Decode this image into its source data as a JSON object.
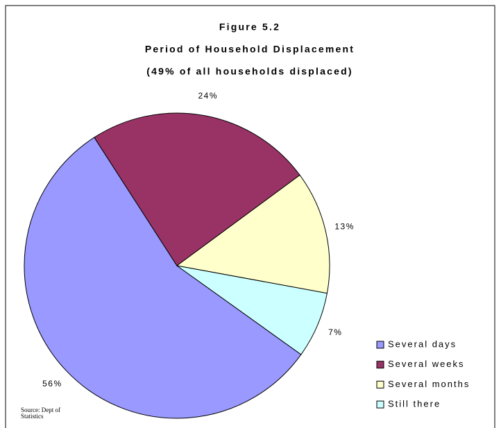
{
  "chart_data": {
    "type": "pie",
    "title": [
      "Figure 5.2",
      "Period of Household Displacement",
      "(49% of all households displaced)"
    ],
    "categories": [
      "Several days",
      "Several weeks",
      "Several months",
      "Still there"
    ],
    "values": [
      56,
      24,
      13,
      7
    ],
    "value_labels": [
      "56%",
      "24%",
      "13%",
      "7%"
    ],
    "colors": [
      "#9999ff",
      "#993366",
      "#ffffcc",
      "#ccffff"
    ],
    "legend": "bottom-right",
    "source": "Source:  Dept of Statistics"
  }
}
